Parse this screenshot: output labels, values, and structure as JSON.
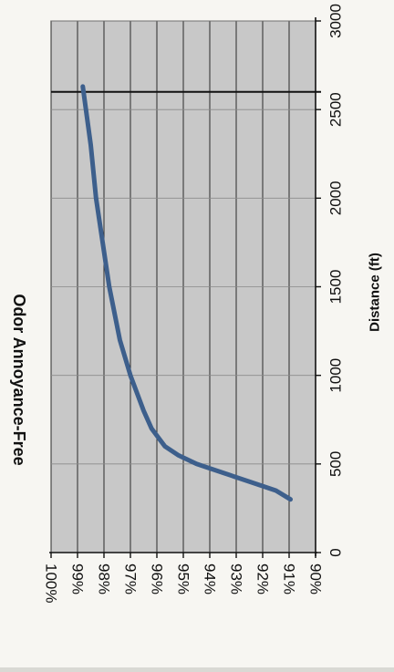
{
  "chart_data": {
    "type": "line",
    "orientation": "rotated-90-clockwise",
    "xlabel": "Distance (ft)",
    "ylabel": "Odor Annoyance-Free",
    "xlim": [
      0,
      3000
    ],
    "ylim": [
      0.9,
      1.0
    ],
    "x_ticks": [
      "0",
      "500",
      "1000",
      "1500",
      "2000",
      "2500",
      "3000"
    ],
    "y_ticks": [
      "90%",
      "91%",
      "92%",
      "93%",
      "94%",
      "95%",
      "96%",
      "97%",
      "98%",
      "99%",
      "100%"
    ],
    "grid": true,
    "plot_background": "#c8c8c8",
    "line_color": "#3d5f8c",
    "reference_line": {
      "x": 2600,
      "color": "#111111"
    },
    "series": [
      {
        "points": [
          {
            "x": 300,
            "y": 0.9095
          },
          {
            "x": 350,
            "y": 0.915
          },
          {
            "x": 400,
            "y": 0.925
          },
          {
            "x": 450,
            "y": 0.935
          },
          {
            "x": 500,
            "y": 0.945
          },
          {
            "x": 550,
            "y": 0.952
          },
          {
            "x": 600,
            "y": 0.957
          },
          {
            "x": 700,
            "y": 0.962
          },
          {
            "x": 800,
            "y": 0.965
          },
          {
            "x": 1000,
            "y": 0.97
          },
          {
            "x": 1200,
            "y": 0.974
          },
          {
            "x": 1500,
            "y": 0.978
          },
          {
            "x": 2000,
            "y": 0.983
          },
          {
            "x": 2300,
            "y": 0.985
          },
          {
            "x": 2630,
            "y": 0.988
          }
        ]
      }
    ]
  }
}
